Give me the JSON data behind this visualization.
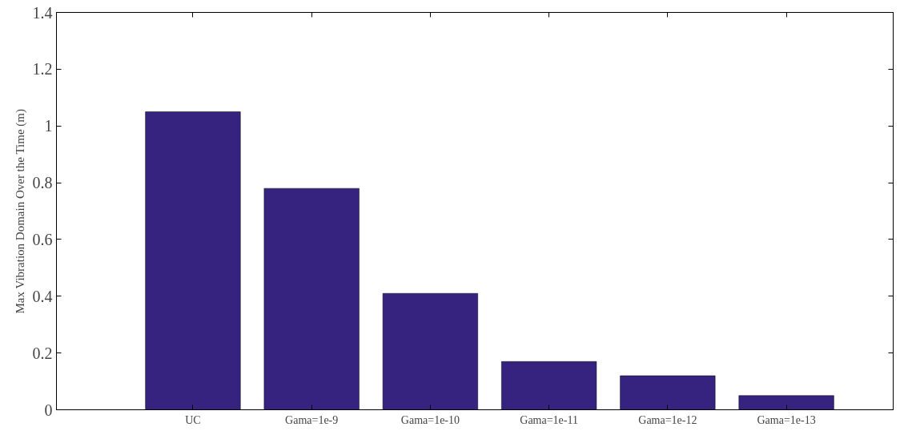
{
  "chart_data": {
    "type": "bar",
    "ylabel": "Max Vibration Domain Over the Time (m)",
    "categories": [
      "UC",
      "Gama=1e-9",
      "Gama=1e-10",
      "Gama=1e-11",
      "Gama=1e-12",
      "Gama=1e-13"
    ],
    "values": [
      1.05,
      0.78,
      0.41,
      0.17,
      0.12,
      0.05
    ],
    "color": "#35237f",
    "ylim": [
      0,
      1.4
    ],
    "yticks": [
      0,
      0.2,
      0.4,
      0.6,
      0.8,
      1,
      1.2,
      1.4
    ],
    "grid": false
  }
}
